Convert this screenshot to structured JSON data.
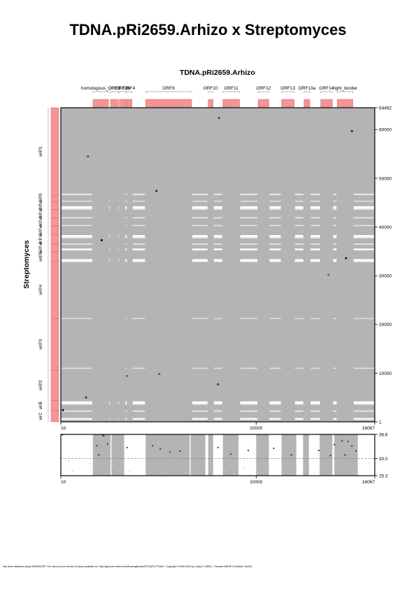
{
  "page": {
    "title": "TDNA.pRi2659.Arhizo x Streptomyces",
    "footer": "has been obtained using GENDB/OFP. The used source version is freely available at: \"http://genome.imim.es/software/gfftools/GFF2APLOT.html\". Copyright ©1999-2003 by Josep F. ABRIL, Thomas WIEHE & Roderic GUIGO"
  },
  "colors": {
    "background": "#b4b4b4",
    "feature_box": "#f49494",
    "gap_line": "#ffffff",
    "frame": "#000000"
  },
  "chart_data": [
    {
      "type": "heatmap",
      "title": "TDNA.pRi2659.Arhizo",
      "xlabel": "",
      "ylabel": "Streptomyces",
      "xlim": [
        10,
        16067
      ],
      "ylim": [
        1,
        64492
      ],
      "x_ticks": [
        {
          "value": 10,
          "label": "10"
        },
        {
          "value": 10000,
          "label": "10000"
        },
        {
          "value": 16067,
          "label": "16067"
        }
      ],
      "y_ticks": [
        {
          "value": 1,
          "label": "1"
        },
        {
          "value": 10000,
          "label": "10000"
        },
        {
          "value": 20000,
          "label": "20000"
        },
        {
          "value": 30000,
          "label": "30000"
        },
        {
          "value": 40000,
          "label": "40000"
        },
        {
          "value": 50000,
          "label": "50000"
        },
        {
          "value": 60000,
          "label": "60000"
        },
        {
          "value": 64492,
          "label": "64492"
        }
      ],
      "x_features": [
        {
          "label": "homologous_ORF3",
          "start": 1650,
          "end": 2450
        },
        {
          "label": "ORF3",
          "start": 2550,
          "end": 2950
        },
        {
          "label": "ORF3b",
          "start": 3000,
          "end": 3350
        },
        {
          "label": "ORF4",
          "start": 3350,
          "end": 3650
        },
        {
          "label": "ORF8",
          "start": 4350,
          "end": 6700
        },
        {
          "label": "ORF10",
          "start": 7550,
          "end": 7800
        },
        {
          "label": "ORF11",
          "start": 8300,
          "end": 9150
        },
        {
          "label": "ORF12",
          "start": 10100,
          "end": 10650
        },
        {
          "label": "ORF13",
          "start": 11300,
          "end": 11950
        },
        {
          "label": "ORF13a",
          "start": 12450,
          "end": 12750
        },
        {
          "label": "ORF14",
          "start": 13300,
          "end": 13900
        },
        {
          "label": "right_border",
          "start": 14150,
          "end": 14950
        }
      ],
      "y_features": [
        {
          "label": "virP1",
          "start": 46500,
          "end": 64492
        },
        {
          "label": "virP0",
          "start": 45200,
          "end": 46500
        },
        {
          "label": "virP-1",
          "start": 43600,
          "end": 45200
        },
        {
          "label": "virP-2",
          "start": 41800,
          "end": 43600
        },
        {
          "label": "virP-3",
          "start": 40200,
          "end": 41800
        },
        {
          "label": "virP-4",
          "start": 38400,
          "end": 40200
        },
        {
          "label": "virP-5",
          "start": 36600,
          "end": 38400
        },
        {
          "label": "virP-6",
          "start": 34900,
          "end": 36600
        },
        {
          "label": "virP5",
          "start": 33000,
          "end": 34900
        },
        {
          "label": "virP4",
          "start": 21200,
          "end": 33000
        },
        {
          "label": "virP3",
          "start": 10600,
          "end": 21200
        },
        {
          "label": "virP2",
          "start": 4400,
          "end": 10600
        },
        {
          "label": "virB",
          "start": 2300,
          "end": 4400
        },
        {
          "label": "virC",
          "start": 1,
          "end": 2300
        }
      ],
      "gap_rows": [
        {
          "y": 46700,
          "strength": 0.55
        },
        {
          "y": 45300,
          "strength": 0.35
        },
        {
          "y": 44050,
          "strength": 1.0
        },
        {
          "y": 43700,
          "strength": 0.6
        },
        {
          "y": 41900,
          "strength": 0.45
        },
        {
          "y": 40300,
          "strength": 0.4
        },
        {
          "y": 38150,
          "strength": 1.0
        },
        {
          "y": 37800,
          "strength": 0.5
        },
        {
          "y": 36500,
          "strength": 0.45
        },
        {
          "y": 35400,
          "strength": 0.9
        },
        {
          "y": 33200,
          "strength": 1.0
        },
        {
          "y": 33000,
          "strength": 0.8
        },
        {
          "y": 21200,
          "strength": 0.3
        },
        {
          "y": 11000,
          "strength": 0.35
        },
        {
          "y": 4000,
          "strength": 1.0
        },
        {
          "y": 3700,
          "strength": 0.7
        },
        {
          "y": 2200,
          "strength": 0.5
        },
        {
          "y": 600,
          "strength": 0.9
        }
      ],
      "hits": [
        {
          "x": 2100,
          "y": 37300,
          "score": 36.5
        },
        {
          "x": 4900,
          "y": 47400,
          "score": 35.0
        },
        {
          "x": 1300,
          "y": 5000,
          "score": 34.0
        },
        {
          "x": 8050,
          "y": 7700,
          "score": 33.5
        },
        {
          "x": 5050,
          "y": 9800,
          "score": 32.0
        },
        {
          "x": 3400,
          "y": 9400,
          "score": 31.5
        },
        {
          "x": 14600,
          "y": 33600,
          "score": 35.5
        },
        {
          "x": 14900,
          "y": 59700,
          "score": 34.5
        },
        {
          "x": 1400,
          "y": 54500,
          "score": 32.5
        },
        {
          "x": 8100,
          "y": 62400,
          "score": 33.0
        },
        {
          "x": 13700,
          "y": 30200,
          "score": 31.0
        },
        {
          "x": 120,
          "y": 2400,
          "score": 36.6
        }
      ]
    },
    {
      "type": "scatter",
      "title": "",
      "xlabel": "",
      "ylabel": "",
      "xlim": [
        10,
        16067
      ],
      "ylim": [
        25.3,
        36.6
      ],
      "threshold": 30.0,
      "x_ticks": [
        {
          "value": 10,
          "label": "10"
        },
        {
          "value": 10000,
          "label": "10000"
        },
        {
          "value": 16067,
          "label": "16067"
        }
      ],
      "y_ticks": [
        {
          "value": 25.3,
          "label": "25.3"
        },
        {
          "value": 30.0,
          "label": "30.0"
        },
        {
          "value": 36.6,
          "label": "36.6"
        }
      ],
      "bands": [
        {
          "start": 1650,
          "end": 2550
        },
        {
          "start": 2600,
          "end": 3250
        },
        {
          "start": 4350,
          "end": 6600
        },
        {
          "start": 6650,
          "end": 7400
        },
        {
          "start": 7550,
          "end": 7800
        },
        {
          "start": 8300,
          "end": 9100
        },
        {
          "start": 10000,
          "end": 10650
        },
        {
          "start": 11300,
          "end": 12050
        },
        {
          "start": 12400,
          "end": 12700
        },
        {
          "start": 13250,
          "end": 13900
        },
        {
          "start": 14000,
          "end": 15200
        }
      ],
      "points": [
        {
          "x": 90,
          "y": 36.5
        },
        {
          "x": 2150,
          "y": 36.5
        },
        {
          "x": 2200,
          "y": 36.2
        },
        {
          "x": 2400,
          "y": 34.0
        },
        {
          "x": 1850,
          "y": 33.5
        },
        {
          "x": 1950,
          "y": 31.0
        },
        {
          "x": 3400,
          "y": 33.0
        },
        {
          "x": 5100,
          "y": 32.6
        },
        {
          "x": 4700,
          "y": 33.5
        },
        {
          "x": 5600,
          "y": 31.8
        },
        {
          "x": 6100,
          "y": 32.0
        },
        {
          "x": 8050,
          "y": 33.0
        },
        {
          "x": 8700,
          "y": 31.2
        },
        {
          "x": 9600,
          "y": 32.2
        },
        {
          "x": 10900,
          "y": 32.8
        },
        {
          "x": 11800,
          "y": 31.0
        },
        {
          "x": 13200,
          "y": 32.2
        },
        {
          "x": 14000,
          "y": 33.8
        },
        {
          "x": 14400,
          "y": 34.8
        },
        {
          "x": 14700,
          "y": 34.7
        },
        {
          "x": 14900,
          "y": 33.4
        },
        {
          "x": 15100,
          "y": 32.1
        },
        {
          "x": 14550,
          "y": 31.0
        },
        {
          "x": 13800,
          "y": 30.8
        },
        {
          "x": 1500,
          "y": 28.6
        },
        {
          "x": 2000,
          "y": 27.6
        },
        {
          "x": 2700,
          "y": 28.2
        },
        {
          "x": 3050,
          "y": 27.1
        },
        {
          "x": 3500,
          "y": 26.4
        },
        {
          "x": 4900,
          "y": 26.8
        },
        {
          "x": 5300,
          "y": 25.9
        },
        {
          "x": 5900,
          "y": 27.3
        },
        {
          "x": 6400,
          "y": 26.1
        },
        {
          "x": 7100,
          "y": 25.7
        },
        {
          "x": 7600,
          "y": 27.9
        },
        {
          "x": 8400,
          "y": 26.6
        },
        {
          "x": 8900,
          "y": 25.6
        },
        {
          "x": 9400,
          "y": 27.2
        },
        {
          "x": 10100,
          "y": 26.0
        },
        {
          "x": 10500,
          "y": 28.4
        },
        {
          "x": 11400,
          "y": 26.3
        },
        {
          "x": 11900,
          "y": 25.8
        },
        {
          "x": 12500,
          "y": 27.5
        },
        {
          "x": 13000,
          "y": 26.2
        },
        {
          "x": 13500,
          "y": 28.0
        },
        {
          "x": 14100,
          "y": 26.7
        },
        {
          "x": 14600,
          "y": 27.8
        },
        {
          "x": 15000,
          "y": 25.9
        },
        {
          "x": 15800,
          "y": 28.9
        },
        {
          "x": 600,
          "y": 26.5
        },
        {
          "x": 400,
          "y": 29.3
        }
      ]
    }
  ]
}
